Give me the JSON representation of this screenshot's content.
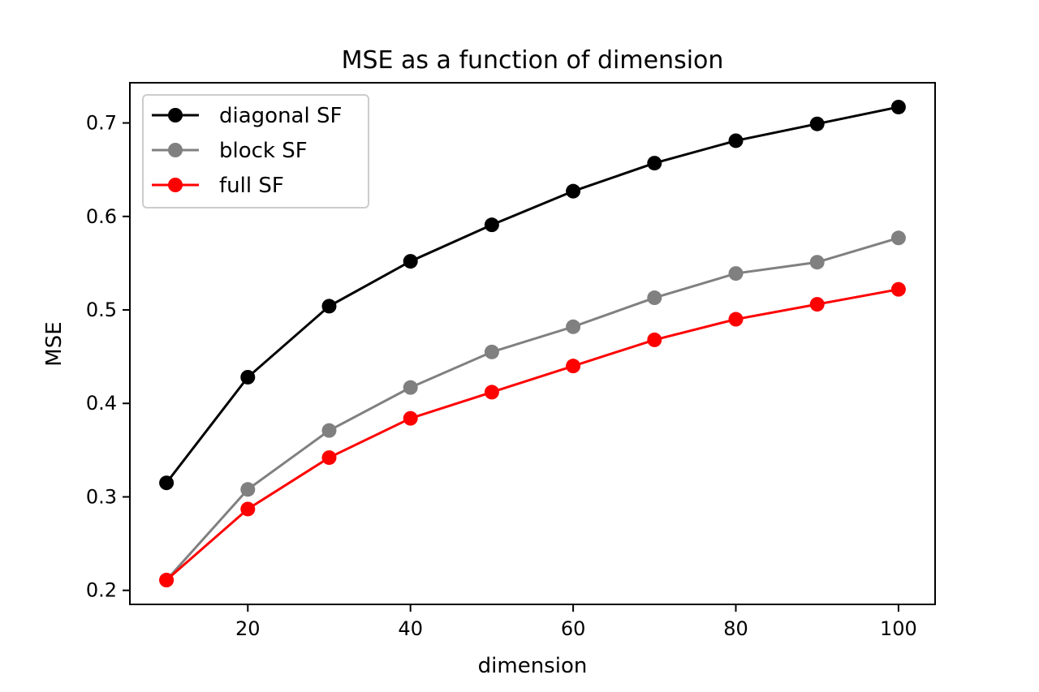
{
  "chart_data": {
    "type": "line",
    "title": "MSE as a function of dimension",
    "xlabel": "dimension",
    "ylabel": "MSE",
    "xlim": [
      5.5,
      104.5
    ],
    "ylim": [
      0.185,
      0.743
    ],
    "xticks": [
      20,
      40,
      60,
      80,
      100
    ],
    "xtick_labels": [
      "20",
      "40",
      "60",
      "80",
      "100"
    ],
    "yticks": [
      0.2,
      0.3,
      0.4,
      0.5,
      0.6,
      0.7
    ],
    "ytick_labels": [
      "0.2",
      "0.3",
      "0.4",
      "0.5",
      "0.6",
      "0.7"
    ],
    "grid": false,
    "legend_position": "top-left",
    "x": [
      10,
      20,
      30,
      40,
      50,
      60,
      70,
      80,
      90,
      100
    ],
    "series": [
      {
        "name": "diagonal SF",
        "color": "#000000",
        "values": [
          0.315,
          0.428,
          0.504,
          0.552,
          0.591,
          0.627,
          0.657,
          0.681,
          0.699,
          0.717
        ]
      },
      {
        "name": "block SF",
        "color": "#808080",
        "values": [
          0.211,
          0.308,
          0.371,
          0.417,
          0.455,
          0.482,
          0.513,
          0.539,
          0.551,
          0.577
        ]
      },
      {
        "name": "full SF",
        "color": "#ff0000",
        "values": [
          0.211,
          0.287,
          0.342,
          0.384,
          0.412,
          0.44,
          0.468,
          0.49,
          0.506,
          0.522
        ]
      }
    ]
  }
}
